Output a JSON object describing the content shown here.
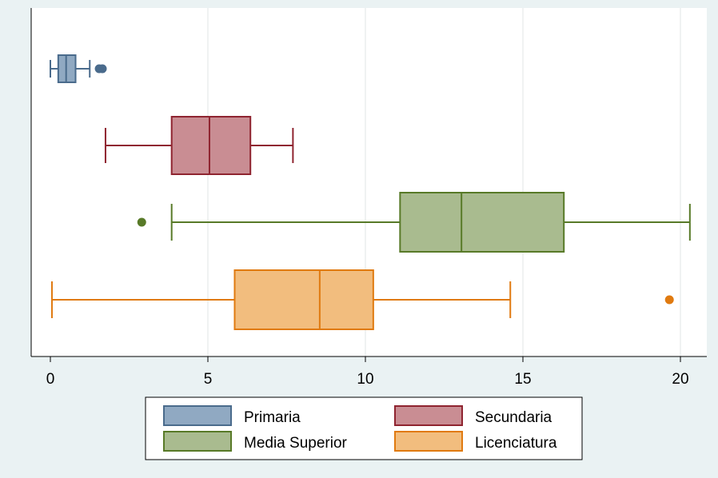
{
  "chart_data": {
    "type": "boxplot",
    "orientation": "horizontal",
    "title": "",
    "xlabel": "",
    "ylabel": "",
    "xlim": [
      -0.6,
      20.9
    ],
    "xticks": [
      0,
      5,
      10,
      15,
      20
    ],
    "grid": true,
    "legend_position": "bottom",
    "series": [
      {
        "name": "Primaria",
        "min": 0.0,
        "q1": 0.25,
        "median": 0.5,
        "q3": 0.8,
        "max": 1.25,
        "outliers": [
          1.55,
          1.65
        ],
        "color": "#4a6b8c",
        "fill": "#90a9c2"
      },
      {
        "name": "Secundaria",
        "min": 1.75,
        "q1": 3.85,
        "median": 5.05,
        "q3": 6.35,
        "max": 7.7,
        "outliers": [],
        "color": "#8f2430",
        "fill": "#c98d93"
      },
      {
        "name": "Media Superior",
        "min": 3.85,
        "q1": 11.1,
        "median": 13.05,
        "q3": 16.3,
        "max": 20.3,
        "outliers": [
          2.9
        ],
        "color": "#587a28",
        "fill": "#a9bb8f"
      },
      {
        "name": "Licenciatura",
        "min": 0.05,
        "q1": 5.85,
        "median": 8.55,
        "q3": 10.25,
        "max": 14.6,
        "outliers": [
          19.65
        ],
        "color": "#e07a10",
        "fill": "#f2bd7e"
      }
    ]
  }
}
